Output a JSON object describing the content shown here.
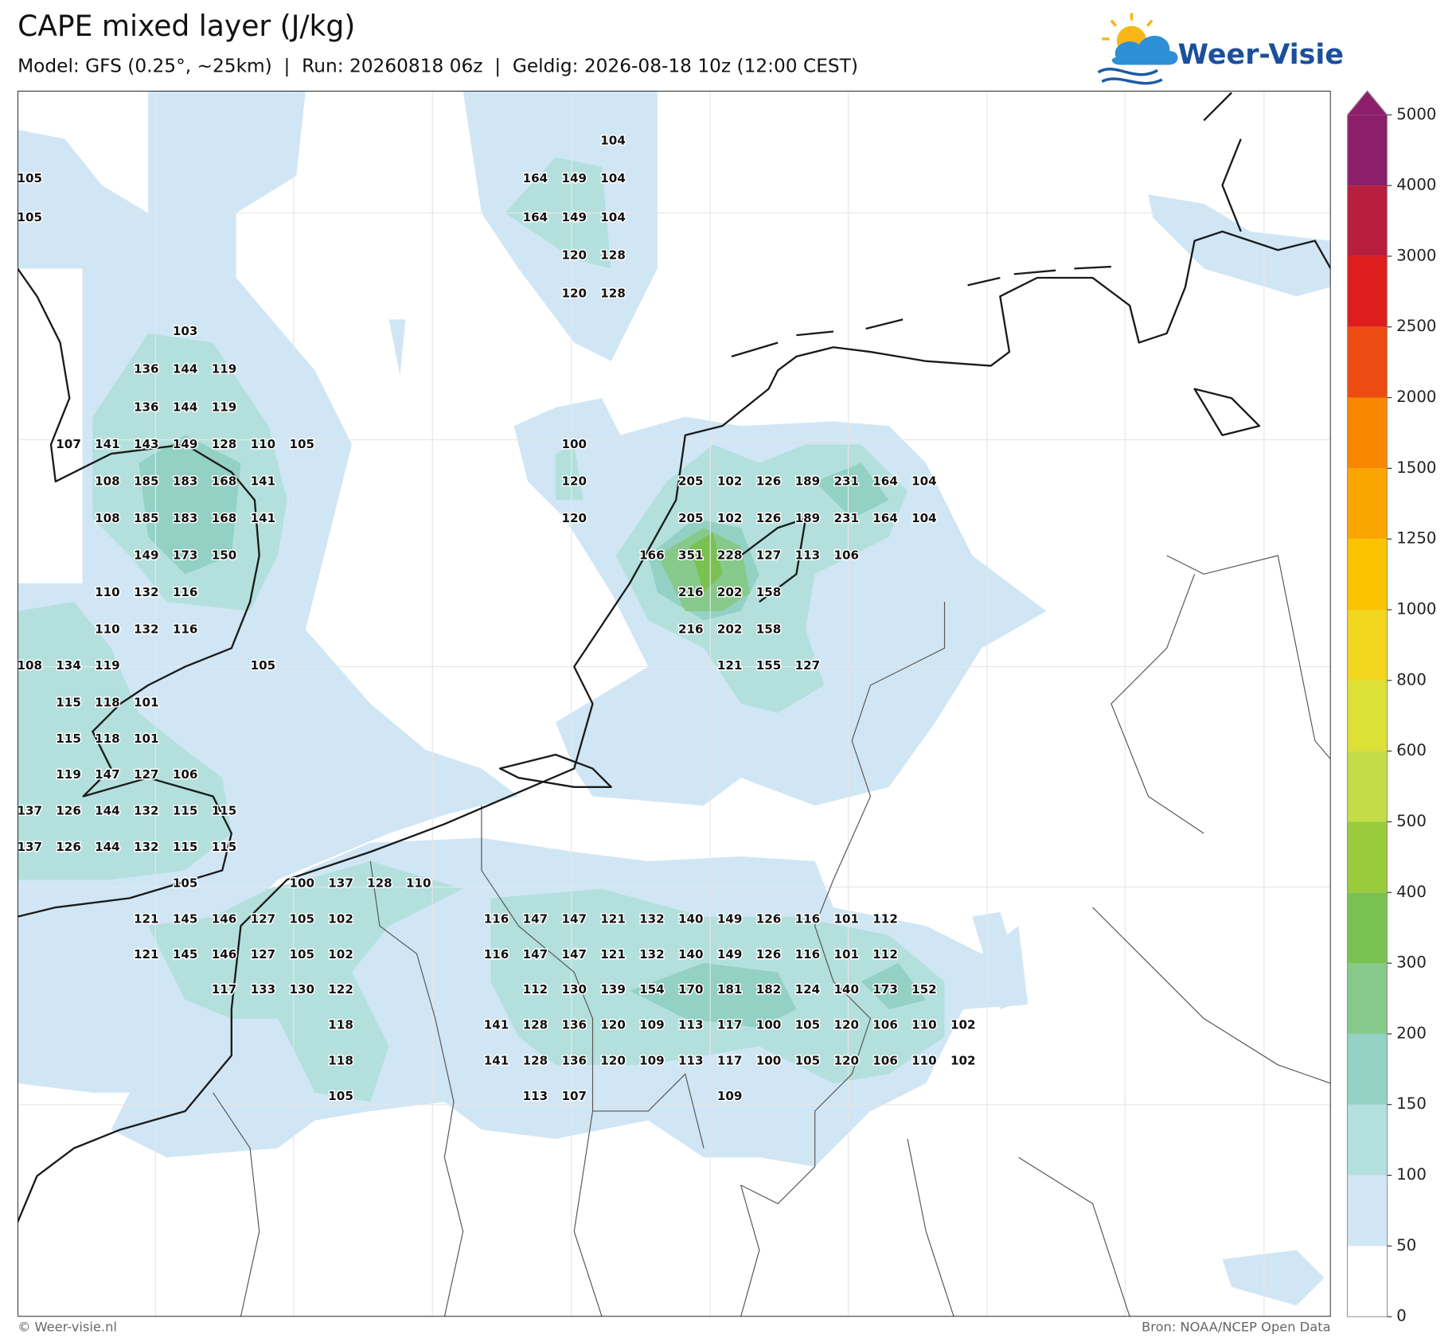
{
  "header": {
    "title": "CAPE mixed layer (J/kg)",
    "subtitle": "Model: GFS (0.25°, ~25km)  |  Run: 20260818 06z  |  Geldig: 2026-08-18 10z (12:00 CEST)"
  },
  "logo": "Weer-Visie",
  "colorbar": {
    "levels": [
      0,
      50,
      100,
      150,
      200,
      300,
      400,
      500,
      600,
      800,
      1000,
      1250,
      1500,
      2000,
      2500,
      3000,
      4000,
      5000
    ],
    "colors": [
      "#ffffff",
      "#d0e6f5",
      "#b3e0dc",
      "#92d1c4",
      "#87c98a",
      "#79c150",
      "#9acb3c",
      "#c3dc48",
      "#dde035",
      "#f2d51d",
      "#fbc200",
      "#fba500",
      "#f98700",
      "#ec4c12",
      "#de1d1d",
      "#b81e3e",
      "#8c1f6a"
    ]
  },
  "grid": [
    [
      null,
      null,
      null,
      null,
      null,
      null,
      null,
      null,
      null,
      null,
      null,
      null,
      null,
      null,
      null,
      104,
      null,
      null,
      null,
      null,
      null,
      null,
      null,
      null,
      null
    ],
    [
      105,
      null,
      null,
      null,
      null,
      null,
      null,
      null,
      null,
      null,
      null,
      null,
      null,
      164,
      149,
      104,
      null,
      null,
      null,
      null,
      null,
      null,
      null,
      null,
      null
    ],
    [
      105,
      null,
      null,
      null,
      null,
      null,
      null,
      null,
      null,
      null,
      null,
      null,
      null,
      164,
      149,
      104,
      null,
      null,
      null,
      null,
      null,
      null,
      null,
      null,
      null
    ],
    [
      null,
      null,
      null,
      null,
      null,
      null,
      null,
      null,
      null,
      null,
      null,
      null,
      null,
      null,
      120,
      128,
      null,
      null,
      null,
      null,
      null,
      null,
      null,
      null,
      null
    ],
    [
      null,
      null,
      null,
      null,
      null,
      null,
      null,
      null,
      null,
      null,
      null,
      null,
      null,
      null,
      120,
      128,
      null,
      null,
      null,
      null,
      null,
      null,
      null,
      null,
      null
    ],
    [
      null,
      null,
      null,
      null,
      103,
      null,
      null,
      null,
      null,
      null,
      null,
      null,
      null,
      null,
      null,
      null,
      null,
      null,
      null,
      null,
      null,
      null,
      null,
      null,
      null
    ],
    [
      null,
      null,
      null,
      136,
      144,
      119,
      null,
      null,
      null,
      null,
      null,
      null,
      null,
      null,
      null,
      null,
      null,
      null,
      null,
      null,
      null,
      null,
      null,
      null,
      null
    ],
    [
      null,
      null,
      null,
      136,
      144,
      119,
      null,
      null,
      null,
      null,
      null,
      null,
      null,
      null,
      null,
      null,
      null,
      null,
      null,
      null,
      null,
      null,
      null,
      null,
      null
    ],
    [
      null,
      107,
      141,
      143,
      149,
      128,
      110,
      105,
      null,
      null,
      null,
      null,
      null,
      null,
      100,
      null,
      null,
      null,
      null,
      null,
      null,
      null,
      null,
      null,
      null
    ],
    [
      null,
      null,
      108,
      185,
      183,
      168,
      141,
      null,
      null,
      null,
      null,
      null,
      null,
      null,
      120,
      null,
      null,
      205,
      102,
      126,
      189,
      231,
      164,
      104,
      null
    ],
    [
      null,
      null,
      108,
      185,
      183,
      168,
      141,
      null,
      null,
      null,
      null,
      null,
      null,
      null,
      120,
      null,
      null,
      205,
      102,
      126,
      189,
      231,
      164,
      104,
      null
    ],
    [
      null,
      null,
      null,
      149,
      173,
      150,
      null,
      null,
      null,
      null,
      null,
      null,
      null,
      null,
      null,
      null,
      166,
      351,
      228,
      127,
      113,
      106,
      null,
      null,
      null
    ],
    [
      null,
      null,
      110,
      132,
      116,
      null,
      null,
      null,
      null,
      null,
      null,
      null,
      null,
      null,
      null,
      null,
      null,
      216,
      202,
      158,
      null,
      null,
      null,
      null,
      null
    ],
    [
      null,
      null,
      110,
      132,
      116,
      null,
      null,
      null,
      null,
      null,
      null,
      null,
      null,
      null,
      null,
      null,
      null,
      216,
      202,
      158,
      null,
      null,
      null,
      null,
      null
    ],
    [
      108,
      134,
      119,
      null,
      null,
      null,
      105,
      null,
      null,
      null,
      null,
      null,
      null,
      null,
      null,
      null,
      null,
      null,
      121,
      155,
      127,
      null,
      null,
      null,
      null
    ],
    [
      null,
      115,
      118,
      101,
      null,
      null,
      null,
      null,
      null,
      null,
      null,
      null,
      null,
      null,
      null,
      null,
      null,
      null,
      null,
      null,
      null,
      null,
      null,
      null,
      null
    ],
    [
      null,
      115,
      118,
      101,
      null,
      null,
      null,
      null,
      null,
      null,
      null,
      null,
      null,
      null,
      null,
      null,
      null,
      null,
      null,
      null,
      null,
      null,
      null,
      null,
      null
    ],
    [
      null,
      119,
      147,
      127,
      106,
      null,
      null,
      null,
      null,
      null,
      null,
      null,
      null,
      null,
      null,
      null,
      null,
      null,
      null,
      null,
      null,
      null,
      null,
      null,
      null
    ],
    [
      137,
      126,
      144,
      132,
      115,
      115,
      null,
      null,
      null,
      null,
      null,
      null,
      null,
      null,
      null,
      null,
      null,
      null,
      null,
      null,
      null,
      null,
      null,
      null,
      null
    ],
    [
      137,
      126,
      144,
      132,
      115,
      115,
      null,
      null,
      null,
      null,
      null,
      null,
      null,
      null,
      null,
      null,
      null,
      null,
      null,
      null,
      null,
      null,
      null,
      null,
      null
    ],
    [
      null,
      null,
      null,
      null,
      105,
      null,
      null,
      100,
      137,
      128,
      110,
      null,
      null,
      null,
      null,
      null,
      null,
      null,
      null,
      null,
      null,
      null,
      null,
      null,
      null
    ],
    [
      null,
      null,
      null,
      121,
      145,
      146,
      127,
      105,
      102,
      null,
      null,
      null,
      116,
      147,
      147,
      121,
      132,
      140,
      149,
      126,
      116,
      101,
      112,
      null,
      null
    ],
    [
      null,
      null,
      null,
      121,
      145,
      146,
      127,
      105,
      102,
      null,
      null,
      null,
      116,
      147,
      147,
      121,
      132,
      140,
      149,
      126,
      116,
      101,
      112,
      null,
      null
    ],
    [
      null,
      null,
      null,
      null,
      null,
      117,
      133,
      130,
      122,
      null,
      null,
      null,
      null,
      112,
      130,
      139,
      154,
      170,
      181,
      182,
      124,
      140,
      173,
      152,
      null
    ],
    [
      null,
      null,
      null,
      null,
      null,
      null,
      null,
      null,
      118,
      null,
      null,
      null,
      141,
      128,
      136,
      120,
      109,
      113,
      117,
      100,
      105,
      120,
      106,
      110,
      102
    ],
    [
      null,
      null,
      null,
      null,
      null,
      null,
      null,
      null,
      118,
      null,
      null,
      null,
      141,
      128,
      136,
      120,
      109,
      113,
      117,
      100,
      105,
      120,
      106,
      110,
      102
    ],
    [
      null,
      null,
      null,
      null,
      null,
      null,
      null,
      null,
      105,
      null,
      null,
      null,
      null,
      113,
      107,
      null,
      null,
      null,
      109,
      null,
      null,
      null,
      null,
      null,
      null
    ]
  ],
  "footer": {
    "left": "© Weer-visie.nl",
    "right": "Bron: NOAA/NCEP Open Data"
  }
}
